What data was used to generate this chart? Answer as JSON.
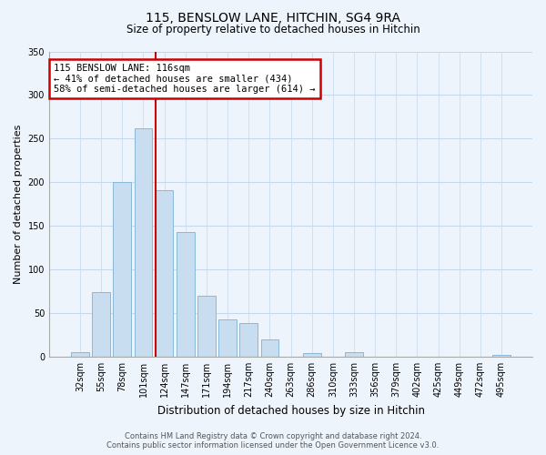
{
  "title": "115, BENSLOW LANE, HITCHIN, SG4 9RA",
  "subtitle": "Size of property relative to detached houses in Hitchin",
  "xlabel": "Distribution of detached houses by size in Hitchin",
  "ylabel": "Number of detached properties",
  "bin_labels": [
    "32sqm",
    "55sqm",
    "78sqm",
    "101sqm",
    "124sqm",
    "147sqm",
    "171sqm",
    "194sqm",
    "217sqm",
    "240sqm",
    "263sqm",
    "286sqm",
    "310sqm",
    "333sqm",
    "356sqm",
    "379sqm",
    "402sqm",
    "425sqm",
    "449sqm",
    "472sqm",
    "495sqm"
  ],
  "bar_values": [
    5,
    74,
    200,
    262,
    191,
    143,
    70,
    43,
    39,
    20,
    0,
    4,
    0,
    5,
    0,
    0,
    0,
    0,
    0,
    0,
    2
  ],
  "bar_color": "#c8ddf0",
  "bar_edge_color": "#8ab8d8",
  "vline_color": "#cc0000",
  "vline_x": 3.57,
  "annotation_text": "115 BENSLOW LANE: 116sqm\n← 41% of detached houses are smaller (434)\n58% of semi-detached houses are larger (614) →",
  "annotation_box_color": "white",
  "annotation_box_edge_color": "#cc0000",
  "ylim": [
    0,
    350
  ],
  "yticks": [
    0,
    50,
    100,
    150,
    200,
    250,
    300,
    350
  ],
  "footer_line1": "Contains HM Land Registry data © Crown copyright and database right 2024.",
  "footer_line2": "Contains public sector information licensed under the Open Government Licence v3.0.",
  "background_color": "#eef4fb",
  "grid_color": "#c5d8ee",
  "title_fontsize": 10,
  "subtitle_fontsize": 8.5,
  "ylabel_fontsize": 8,
  "xlabel_fontsize": 8.5,
  "tick_fontsize": 7,
  "annotation_fontsize": 7.5,
  "footer_fontsize": 6
}
